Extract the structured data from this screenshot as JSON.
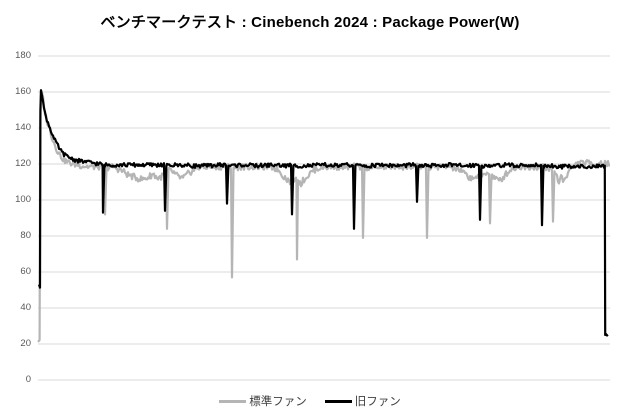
{
  "chart_data": {
    "type": "line",
    "title": "ベンチマークテスト : Cinebench 2024 : Package Power(W)",
    "xlabel": "",
    "ylabel": "",
    "ylim": [
      0,
      180
    ],
    "yticks": [
      0,
      20,
      40,
      60,
      80,
      100,
      120,
      140,
      160,
      180
    ],
    "x_tick_labels_visible": false,
    "grid": "horizontal",
    "gridline_color": "#d9d9d9",
    "axis_label_color": "#595959",
    "legend_position": "bottom-center",
    "background_color": "#ffffff",
    "x_units": "time-samples (unlabeled on axis)",
    "series": [
      {
        "id": "standard-fan",
        "name": "標準ファン",
        "color": "#b5b5b5",
        "line_width": 2.2,
        "noise_amp": 1.8,
        "noise_seed": 3,
        "keypoints": [
          [
            0,
            22
          ],
          [
            1,
            22
          ],
          [
            1.6,
            22
          ],
          [
            2.2,
            140
          ],
          [
            3,
            161
          ],
          [
            4,
            159
          ],
          [
            5,
            156
          ],
          [
            6,
            152
          ],
          [
            7,
            149
          ],
          [
            8,
            146
          ],
          [
            9,
            144
          ],
          [
            10,
            142
          ],
          [
            12,
            139
          ],
          [
            14,
            135
          ],
          [
            16,
            132
          ],
          [
            18,
            129
          ],
          [
            20,
            127
          ],
          [
            22,
            125
          ],
          [
            24,
            123.5
          ],
          [
            26,
            122.5
          ],
          [
            28,
            121.5
          ],
          [
            30,
            121
          ],
          [
            35,
            120
          ],
          [
            40,
            119.5
          ],
          [
            50,
            118.5
          ],
          [
            60,
            118.5
          ],
          [
            66,
            118.5
          ],
          [
            67,
            92
          ],
          [
            68.5,
            118
          ],
          [
            75,
            118.5
          ],
          [
            85,
            116
          ],
          [
            90,
            114
          ],
          [
            95,
            113
          ],
          [
            100,
            112
          ],
          [
            105,
            111.5
          ],
          [
            110,
            112.5
          ],
          [
            115,
            114.5
          ],
          [
            120,
            112
          ],
          [
            125,
            113.5
          ],
          [
            128,
            117
          ],
          [
            129,
            84
          ],
          [
            130.5,
            116.5
          ],
          [
            135,
            115.5
          ],
          [
            140,
            113
          ],
          [
            145,
            112
          ],
          [
            150,
            114.5
          ],
          [
            155,
            116.5
          ],
          [
            160,
            118
          ],
          [
            170,
            118.5
          ],
          [
            182,
            118.5
          ],
          [
            193,
            118.5
          ],
          [
            194,
            57
          ],
          [
            195.5,
            118
          ],
          [
            205,
            118.5
          ],
          [
            218,
            118.5
          ],
          [
            232,
            118.5
          ],
          [
            240,
            117
          ],
          [
            245,
            113.5
          ],
          [
            250,
            111
          ],
          [
            254,
            110
          ],
          [
            257,
            112
          ],
          [
            258.5,
            111
          ],
          [
            259,
            67
          ],
          [
            260,
            111
          ],
          [
            263,
            109
          ],
          [
            266,
            111.5
          ],
          [
            270,
            113.5
          ],
          [
            275,
            116.5
          ],
          [
            282,
            118
          ],
          [
            292,
            118.5
          ],
          [
            305,
            118.5
          ],
          [
            318,
            118.5
          ],
          [
            324,
            118.5
          ],
          [
            325,
            79
          ],
          [
            326.5,
            118
          ],
          [
            336,
            118.5
          ],
          [
            350,
            118.5
          ],
          [
            365,
            118.5
          ],
          [
            380,
            118.5
          ],
          [
            388,
            118.5
          ],
          [
            389,
            79
          ],
          [
            390.5,
            118
          ],
          [
            400,
            118.5
          ],
          [
            412,
            118.5
          ],
          [
            422,
            116.5
          ],
          [
            428,
            114
          ],
          [
            433,
            112
          ],
          [
            437,
            113
          ],
          [
            441,
            112
          ],
          [
            445,
            114
          ],
          [
            448,
            115.5
          ],
          [
            451,
            115
          ],
          [
            452,
            87
          ],
          [
            453.5,
            114
          ],
          [
            457,
            112
          ],
          [
            461,
            110.5
          ],
          [
            465,
            112.5
          ],
          [
            469,
            115
          ],
          [
            473,
            117
          ],
          [
            480,
            118.5
          ],
          [
            492,
            118.5
          ],
          [
            504,
            118.5
          ],
          [
            514,
            117.5
          ],
          [
            515,
            88
          ],
          [
            516.5,
            116
          ],
          [
            519,
            113
          ],
          [
            521,
            109.5
          ],
          [
            523,
            113.5
          ],
          [
            525,
            111
          ],
          [
            528,
            113
          ],
          [
            531,
            116
          ],
          [
            534,
            118
          ],
          [
            537,
            119.5
          ],
          [
            543,
            120.5
          ],
          [
            550,
            120.5
          ],
          [
            557,
            120
          ],
          [
            563,
            120.5
          ],
          [
            568,
            120
          ],
          [
            572,
            120
          ]
        ]
      },
      {
        "id": "old-fan",
        "name": "旧ファン",
        "color": "#000000",
        "line_width": 2.2,
        "noise_amp": 1.1,
        "noise_seed": 8,
        "keypoints": [
          [
            1,
            52
          ],
          [
            2,
            52
          ],
          [
            2.4,
            150
          ],
          [
            3,
            161
          ],
          [
            4,
            159
          ],
          [
            5,
            155
          ],
          [
            6,
            151
          ],
          [
            7,
            148
          ],
          [
            8,
            146
          ],
          [
            9,
            144.5
          ],
          [
            10,
            143
          ],
          [
            11,
            141.5
          ],
          [
            12,
            140
          ],
          [
            13,
            138.5
          ],
          [
            14,
            137
          ],
          [
            15,
            135.5
          ],
          [
            16,
            134
          ],
          [
            17,
            133
          ],
          [
            18,
            132
          ],
          [
            19,
            131
          ],
          [
            20,
            130
          ],
          [
            22,
            128
          ],
          [
            24,
            126.5
          ],
          [
            26,
            125.5
          ],
          [
            28,
            124.5
          ],
          [
            30,
            124
          ],
          [
            34,
            123
          ],
          [
            38,
            122
          ],
          [
            44,
            121.5
          ],
          [
            50,
            121
          ],
          [
            57,
            120.5
          ],
          [
            60,
            120
          ],
          [
            64,
            120
          ],
          [
            64.6,
            119
          ],
          [
            65,
            93
          ],
          [
            66.4,
            119.5
          ],
          [
            75,
            119.5
          ],
          [
            90,
            119.5
          ],
          [
            105,
            119.5
          ],
          [
            120,
            119.5
          ],
          [
            126,
            119.5
          ],
          [
            127,
            94
          ],
          [
            128.4,
            119
          ],
          [
            140,
            119.5
          ],
          [
            155,
            119
          ],
          [
            170,
            119
          ],
          [
            182,
            119.5
          ],
          [
            188,
            119.5
          ],
          [
            189,
            98
          ],
          [
            190.4,
            119
          ],
          [
            205,
            119.5
          ],
          [
            220,
            119
          ],
          [
            235,
            119.5
          ],
          [
            250,
            119
          ],
          [
            253,
            119.5
          ],
          [
            254,
            92
          ],
          [
            255.4,
            119
          ],
          [
            270,
            119
          ],
          [
            285,
            119.5
          ],
          [
            300,
            119
          ],
          [
            310,
            119.5
          ],
          [
            315,
            119.5
          ],
          [
            316,
            84
          ],
          [
            317.4,
            119
          ],
          [
            330,
            119
          ],
          [
            345,
            119.5
          ],
          [
            360,
            119
          ],
          [
            375,
            119.5
          ],
          [
            378,
            119.5
          ],
          [
            379,
            99
          ],
          [
            380.4,
            119
          ],
          [
            395,
            119
          ],
          [
            410,
            119.5
          ],
          [
            425,
            119
          ],
          [
            438,
            119.5
          ],
          [
            441,
            119.5
          ],
          [
            442,
            89
          ],
          [
            443.4,
            119
          ],
          [
            455,
            119
          ],
          [
            468,
            119.5
          ],
          [
            480,
            119
          ],
          [
            495,
            119.5
          ],
          [
            503,
            119.5
          ],
          [
            504,
            86
          ],
          [
            505.4,
            119
          ],
          [
            515,
            119
          ],
          [
            525,
            118.5
          ],
          [
            535,
            119
          ],
          [
            545,
            118.5
          ],
          [
            555,
            118.5
          ],
          [
            560,
            118.5
          ],
          [
            566.8,
            118.5
          ],
          [
            567.2,
            25
          ],
          [
            570,
            25
          ]
        ]
      }
    ]
  }
}
